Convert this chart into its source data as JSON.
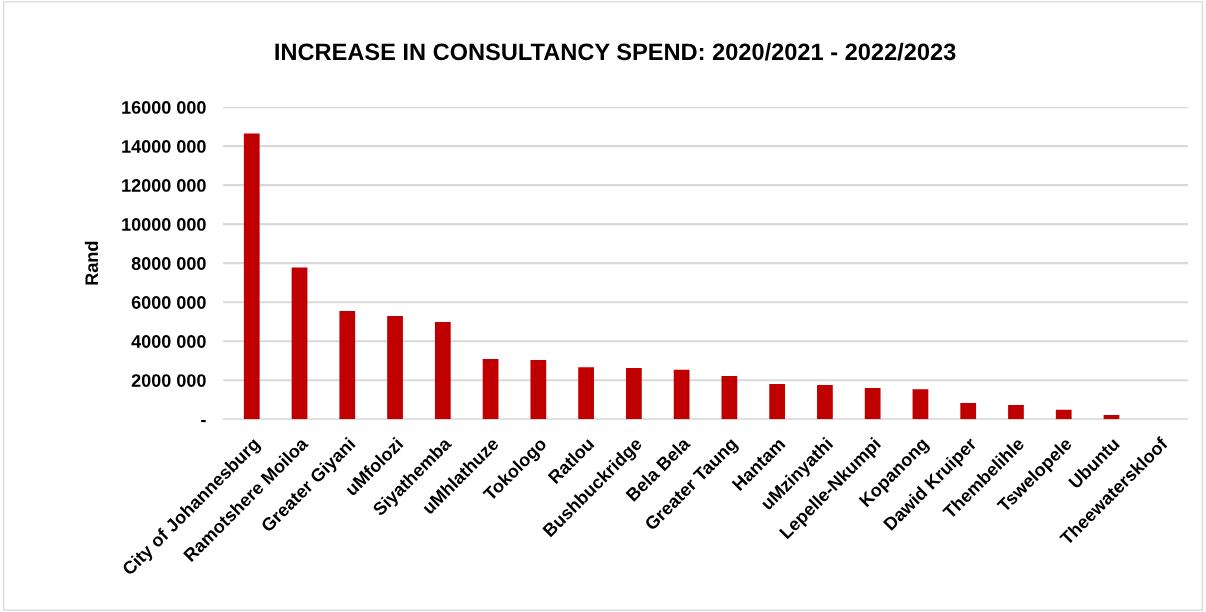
{
  "chart_data": {
    "type": "bar",
    "title": "INCREASE IN CONSULTANCY SPEND: 2020/2021 - 2022/2023",
    "ylabel": "Rand",
    "categories": [
      "City of Johannesburg",
      "Ramotshere Moiloa",
      "Greater Giyani",
      "uMfolozi",
      "Siyathemba",
      "uMhlathuze",
      "Tokologo",
      "Ratlou",
      "Bushbuckridge",
      "Bela Bela",
      "Greater Taung",
      "Hantam",
      "uMzinyathi",
      "Lepelle-Nkumpi",
      "Kopanong",
      "Dawid Kruiper",
      "Thembelihle",
      "Tswelopele",
      "Ubuntu",
      "Theewaterskloof"
    ],
    "values": [
      14650000,
      7780000,
      5550000,
      5290000,
      4980000,
      3090000,
      3030000,
      2670000,
      2630000,
      2530000,
      2220000,
      1800000,
      1760000,
      1600000,
      1540000,
      830000,
      730000,
      480000,
      220000,
      0
    ],
    "color": "#c00000",
    "ylim": [
      0,
      16000000
    ],
    "yticks": [
      {
        "value": 0,
        "label": "-"
      },
      {
        "value": 2000000,
        "label": "2000 000"
      },
      {
        "value": 4000000,
        "label": "4000 000"
      },
      {
        "value": 6000000,
        "label": "6000 000"
      },
      {
        "value": 8000000,
        "label": "8000 000"
      },
      {
        "value": 10000000,
        "label": "10000 000"
      },
      {
        "value": 12000000,
        "label": "12000 000"
      },
      {
        "value": 14000000,
        "label": "14000 000"
      },
      {
        "value": 16000000,
        "label": "16000 000"
      }
    ],
    "grid": "y"
  }
}
